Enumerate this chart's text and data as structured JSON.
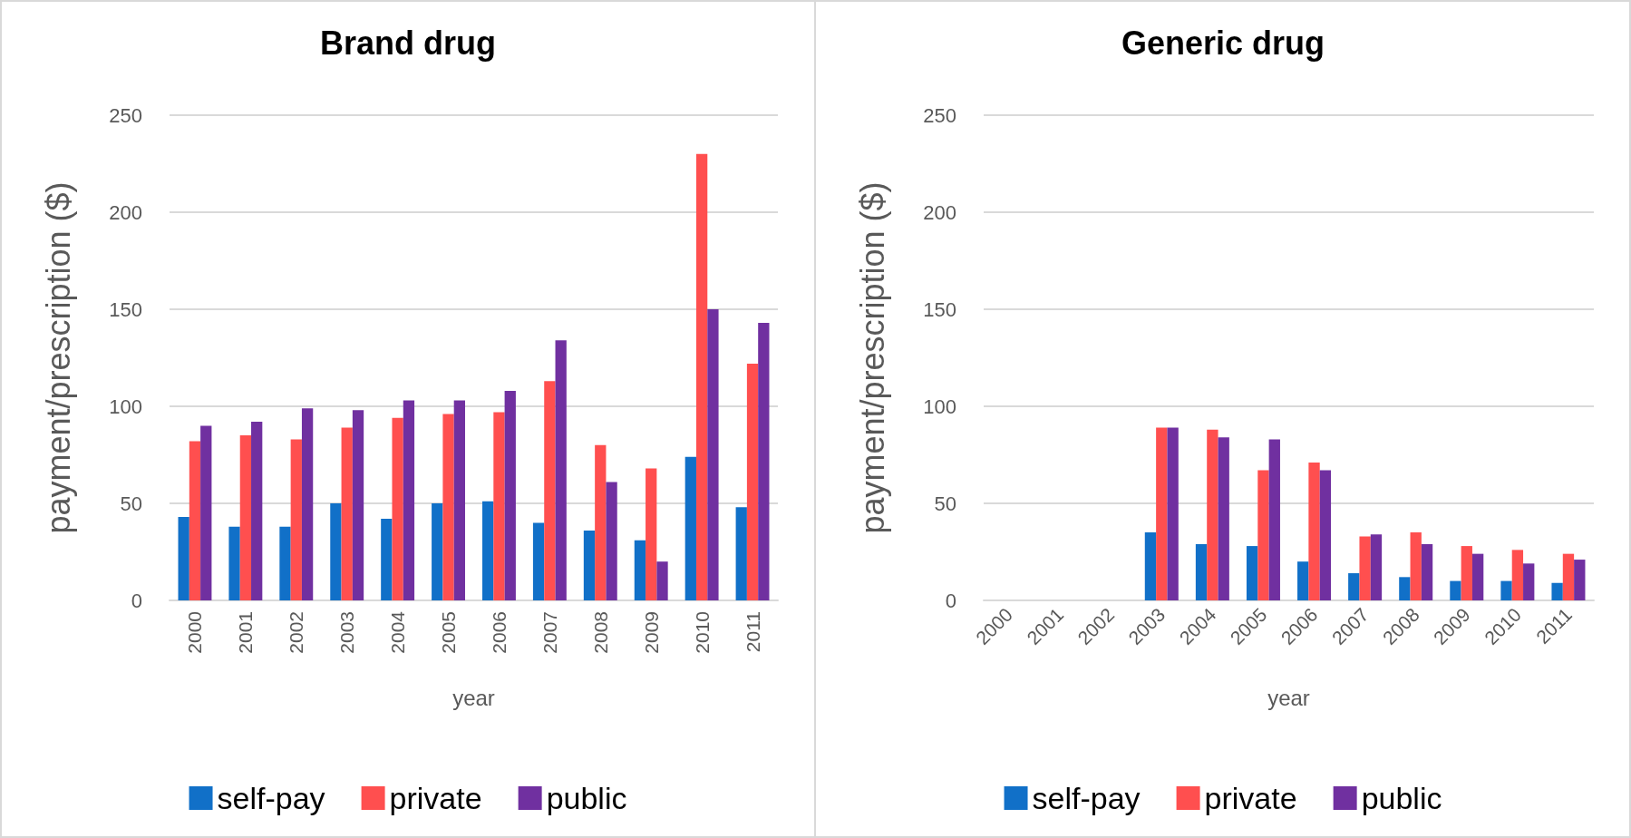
{
  "chart_data": [
    {
      "type": "bar",
      "title": "Brand drug",
      "xlabel": "year",
      "ylabel": "payment/prescription ($)",
      "categories": [
        "2000",
        "2001",
        "2002",
        "2003",
        "2004",
        "2005",
        "2006",
        "2007",
        "2008",
        "2009",
        "2010",
        "2011"
      ],
      "series": [
        {
          "name": "self-pay",
          "color": "#1170c8",
          "values": [
            43,
            38,
            38,
            50,
            42,
            50,
            51,
            40,
            36,
            31,
            74,
            48
          ]
        },
        {
          "name": "private",
          "color": "#ff4f4f",
          "values": [
            82,
            85,
            83,
            89,
            94,
            96,
            97,
            113,
            80,
            68,
            230,
            122
          ]
        },
        {
          "name": "public",
          "color": "#7030a0",
          "values": [
            90,
            92,
            99,
            98,
            103,
            103,
            108,
            134,
            61,
            20,
            150,
            143
          ]
        }
      ],
      "ylim": [
        0,
        250
      ],
      "yticks": [
        0,
        50,
        100,
        150,
        200,
        250
      ],
      "grid": "y",
      "legend": "bottom"
    },
    {
      "type": "bar",
      "title": "Generic drug",
      "xlabel": "year",
      "ylabel": "payment/prescription ($)",
      "categories": [
        "2000",
        "2001",
        "2002",
        "2003",
        "2004",
        "2005",
        "2006",
        "2007",
        "2008",
        "2009",
        "2010",
        "2011"
      ],
      "series": [
        {
          "name": "self-pay",
          "color": "#1170c8",
          "values": [
            null,
            null,
            null,
            35,
            29,
            28,
            20,
            14,
            12,
            10,
            10,
            9
          ]
        },
        {
          "name": "private",
          "color": "#ff4f4f",
          "values": [
            null,
            null,
            null,
            89,
            88,
            67,
            71,
            33,
            35,
            28,
            26,
            24
          ]
        },
        {
          "name": "public",
          "color": "#7030a0",
          "values": [
            null,
            null,
            null,
            89,
            84,
            83,
            67,
            34,
            29,
            24,
            19,
            21
          ]
        }
      ],
      "ylim": [
        0,
        250
      ],
      "yticks": [
        0,
        50,
        100,
        150,
        200,
        250
      ],
      "grid": "y",
      "legend": "bottom"
    }
  ]
}
